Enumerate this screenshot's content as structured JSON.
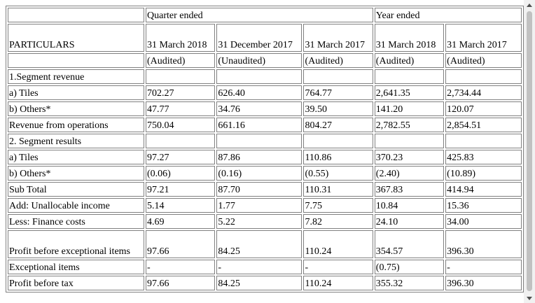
{
  "header": {
    "particulars": "PARTICULARS",
    "quarter_ended": "Quarter ended",
    "year_ended": "Year ended",
    "periods": [
      {
        "date": "31 March 2018",
        "status": "(Audited)"
      },
      {
        "date": "31 December 2017",
        "status": "(Unaudited)"
      },
      {
        "date": "31 March 2017",
        "status": "(Audited)"
      },
      {
        "date": "31 March 2018",
        "status": "(Audited)"
      },
      {
        "date": "31 March 2017",
        "status": "(Audited)"
      }
    ]
  },
  "rows": [
    {
      "label": "1.Segment revenue",
      "values": [
        "",
        "",
        "",
        "",
        ""
      ]
    },
    {
      "label": "a) Tiles",
      "values": [
        "702.27",
        "626.40",
        "764.77",
        "2,641.35",
        "2,734.44"
      ]
    },
    {
      "label": "b) Others*",
      "values": [
        "47.77",
        "34.76",
        "39.50",
        "141.20",
        "120.07"
      ]
    },
    {
      "label": "Revenue from operations",
      "values": [
        "750.04",
        "661.16",
        "804.27",
        "2,782.55",
        "2,854.51"
      ]
    },
    {
      "label": "2. Segment results",
      "values": [
        "",
        "",
        "",
        "",
        ""
      ]
    },
    {
      "label": "a) Tiles",
      "values": [
        "97.27",
        "87.86",
        "110.86",
        "370.23",
        "425.83"
      ]
    },
    {
      "label": "b) Others*",
      "values": [
        "(0.06)",
        "(0.16)",
        "(0.55)",
        "(2.40)",
        "(10.89)"
      ]
    },
    {
      "label": "Sub Total",
      "values": [
        "97.21",
        "87.70",
        "110.31",
        "367.83",
        "414.94"
      ]
    },
    {
      "label": "Add: Unallocable income",
      "values": [
        "5.14",
        "1.77",
        "7.75",
        "10.84",
        "15.36"
      ]
    },
    {
      "label": "Less: Finance costs",
      "values": [
        "4.69",
        "5.22",
        "7.82",
        "24.10",
        "34.00"
      ]
    },
    {
      "label": "Profit before exceptional items",
      "values": [
        "97.66",
        "84.25",
        "110.24",
        "354.57",
        "396.30"
      ]
    },
    {
      "label": "Exceptional items",
      "values": [
        "-",
        "-",
        "-",
        "(0.75)",
        "-"
      ]
    },
    {
      "label": "Profit before tax",
      "values": [
        "97.66",
        "84.25",
        "110.24",
        "355.32",
        "396.30"
      ]
    }
  ],
  "scrollbar": {
    "up_icon": "triangle-up-icon",
    "down_icon": "triangle-down-icon"
  }
}
